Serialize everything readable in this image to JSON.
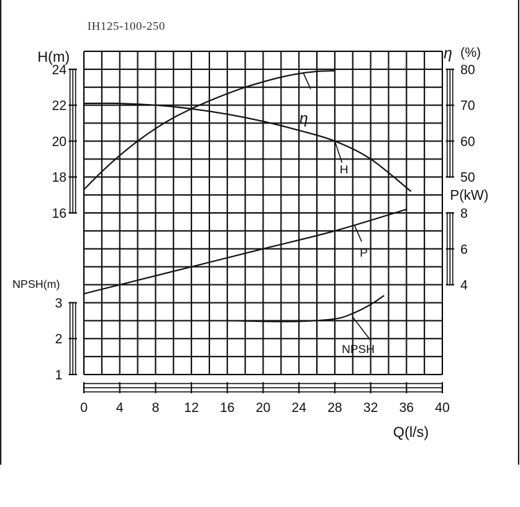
{
  "title": "IH125-100-250",
  "chart_data": {
    "type": "line",
    "title": "IH125-100-250",
    "xlabel": "Q(l/s)",
    "xlim": [
      0,
      40
    ],
    "x_ticks": [
      0,
      4,
      8,
      12,
      16,
      20,
      24,
      28,
      32,
      36,
      40
    ],
    "grid": true,
    "axes": {
      "head": {
        "label": "H(m)",
        "ticks": [
          16,
          18,
          20,
          22,
          24
        ],
        "range": [
          16,
          24
        ]
      },
      "npsh": {
        "label": "NPSH(m)",
        "ticks": [
          1,
          2,
          3
        ],
        "range": [
          1,
          3
        ]
      },
      "efficiency": {
        "label": "η (%)",
        "ticks": [
          50,
          60,
          70,
          80
        ],
        "range": [
          50,
          80
        ]
      },
      "power": {
        "label": "P(kW)",
        "ticks": [
          4,
          6,
          8
        ],
        "range": [
          4,
          8
        ]
      }
    },
    "series": [
      {
        "name": "H",
        "axis": "head",
        "x": [
          0,
          4,
          8,
          12,
          16,
          20,
          24,
          28,
          32,
          36.5
        ],
        "values": [
          22.1,
          22.1,
          22.0,
          21.8,
          21.5,
          21.1,
          20.6,
          20.0,
          19.0,
          17.2
        ]
      },
      {
        "name": "η",
        "axis": "efficiency",
        "x": [
          0,
          2,
          4,
          6,
          8,
          10,
          12,
          14,
          16,
          18,
          20,
          22,
          24,
          26,
          28
        ],
        "values": [
          46.5,
          51.5,
          56,
          60,
          63.5,
          66.5,
          69,
          71.2,
          73.2,
          75,
          76.5,
          77.8,
          78.8,
          79.4,
          79.6
        ]
      },
      {
        "name": "P",
        "axis": "power",
        "x": [
          0,
          4,
          12,
          20,
          28,
          36
        ],
        "values": [
          3.5,
          4.0,
          5.0,
          6.0,
          7.0,
          8.2
        ]
      },
      {
        "name": "NPSH",
        "axis": "npsh",
        "x": [
          16,
          20,
          24,
          28,
          30,
          32,
          33.5
        ],
        "values": [
          2.5,
          2.48,
          2.48,
          2.55,
          2.7,
          2.95,
          3.2
        ]
      }
    ],
    "annotations": [
      "η",
      "H",
      "P",
      "NPSH"
    ]
  },
  "labels": {
    "h_axis": "H(m)",
    "npsh_axis": "NPSH(m)",
    "eta_axis_symbol": "η",
    "eta_axis_unit": "(%)",
    "p_axis": "P(kW)",
    "x_axis": "Q(l/s)",
    "curve_eta": "η",
    "curve_h": "H",
    "curve_p": "P",
    "curve_npsh": "NPSH"
  }
}
